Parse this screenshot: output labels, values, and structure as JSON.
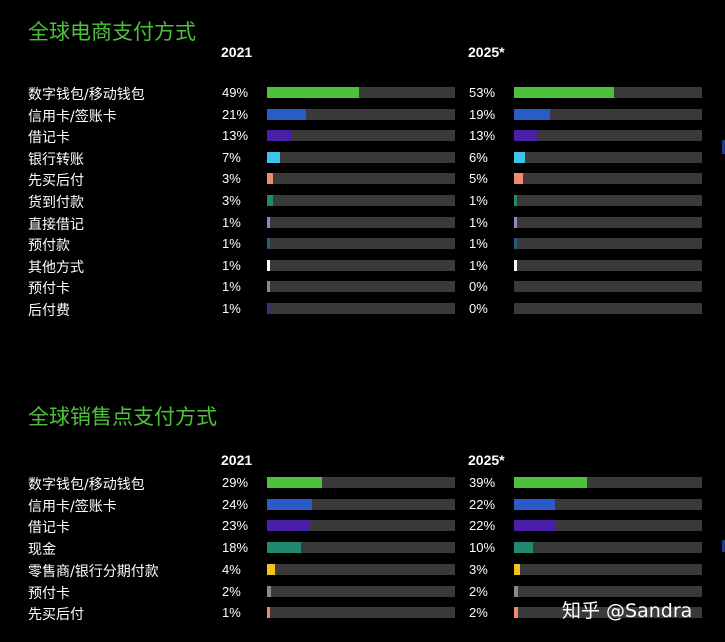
{
  "chart_data": [
    {
      "type": "bar",
      "title": "全球电商支付方式",
      "columns": [
        "2021",
        "2025*"
      ],
      "xlim": [
        0,
        100
      ],
      "categories": [
        "数字钱包/移动钱包",
        "信用卡/签账卡",
        "借记卡",
        "银行转账",
        "先买后付",
        "货到付款",
        "直接借记",
        "预付款",
        "其他方式",
        "预付卡",
        "后付费"
      ],
      "series": [
        {
          "name": "2021",
          "values": [
            49,
            21,
            13,
            7,
            3,
            3,
            1,
            1,
            1,
            1,
            1
          ],
          "labels": [
            "49%",
            "21%",
            "13%",
            "7%",
            "3%",
            "3%",
            "1%",
            "1%",
            "1%",
            "1%",
            "1%"
          ]
        },
        {
          "name": "2025*",
          "values": [
            53,
            19,
            13,
            6,
            5,
            1,
            1,
            1,
            1,
            0,
            0
          ],
          "labels": [
            "53%",
            "19%",
            "13%",
            "6%",
            "5%",
            "1%",
            "1%",
            "1%",
            "1%",
            "0%",
            "0%"
          ]
        }
      ],
      "colors": [
        "#4cc23a",
        "#2a5bc7",
        "#4a1fa8",
        "#3fc3e8",
        "#f08a6e",
        "#1e8a6e",
        "#8f86c2",
        "#1f5f7a",
        "#ffffff",
        "#8a8a8a",
        "#4a1fa8"
      ]
    },
    {
      "type": "bar",
      "title": "全球销售点支付方式",
      "columns": [
        "2021",
        "2025*"
      ],
      "xlim": [
        0,
        100
      ],
      "categories": [
        "数字钱包/移动钱包",
        "信用卡/签账卡",
        "借记卡",
        "现金",
        "零售商/银行分期付款",
        "预付卡",
        "先买后付"
      ],
      "series": [
        {
          "name": "2021",
          "values": [
            29,
            24,
            23,
            18,
            4,
            2,
            1
          ],
          "labels": [
            "29%",
            "24%",
            "23%",
            "18%",
            "4%",
            "2%",
            "1%"
          ]
        },
        {
          "name": "2025*",
          "values": [
            39,
            22,
            22,
            10,
            3,
            2,
            2
          ],
          "labels": [
            "39%",
            "22%",
            "22%",
            "10%",
            "3%",
            "2%",
            "2%"
          ]
        }
      ],
      "colors": [
        "#4cc23a",
        "#2a5bc7",
        "#4a1fa8",
        "#1e8a6e",
        "#f2c21b",
        "#8a8a8a",
        "#f08a6e"
      ]
    }
  ],
  "watermark": "知乎 @Sandra"
}
